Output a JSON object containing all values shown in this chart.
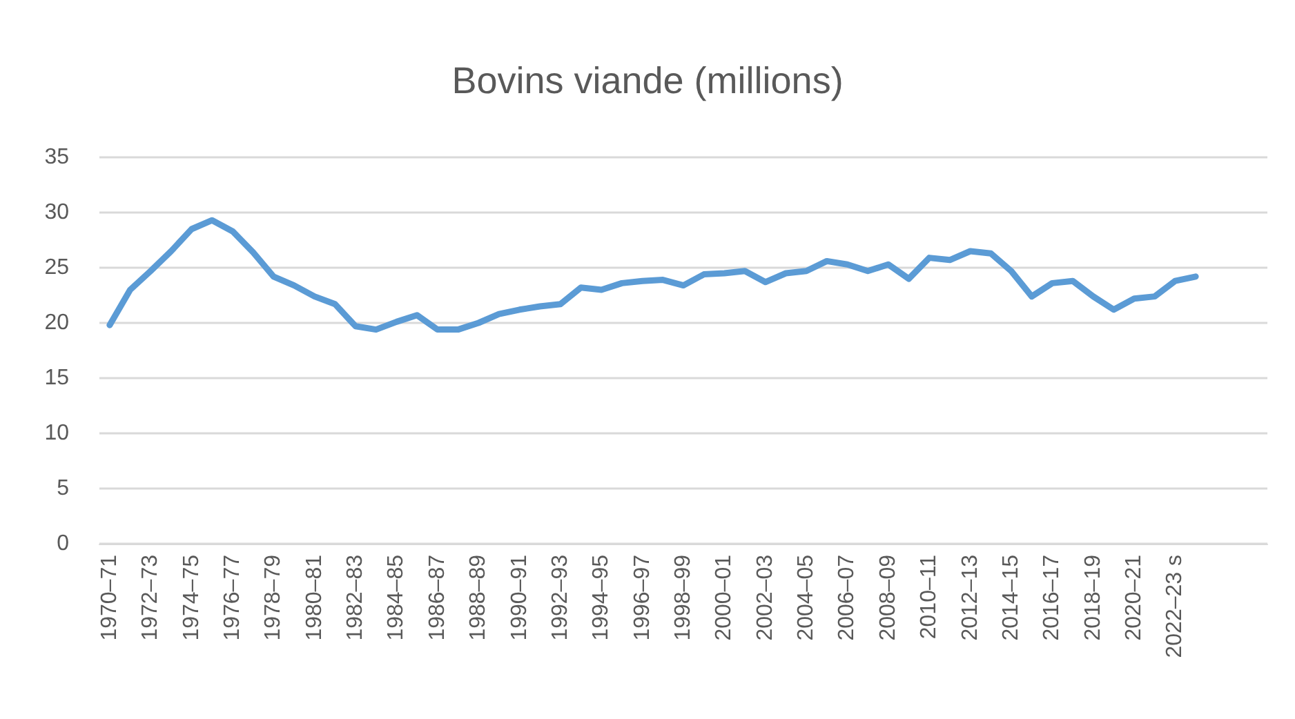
{
  "chart_data": {
    "type": "line",
    "title": "Bovins viande (millions)",
    "categories": [
      "1970–71",
      null,
      "1972–73",
      null,
      "1974–75",
      null,
      "1976–77",
      null,
      "1978–79",
      null,
      "1980–81",
      null,
      "1982–83",
      null,
      "1984–85",
      null,
      "1986–87",
      null,
      "1988–89",
      null,
      "1990–91",
      null,
      "1992–93",
      null,
      "1994–95",
      null,
      "1996–97",
      null,
      "1998–99",
      null,
      "2000–01",
      null,
      "2002–03",
      null,
      "2004–05",
      null,
      "2006–07",
      null,
      "2008–09",
      null,
      "2010–11",
      null,
      "2012–13",
      null,
      "2014–15",
      null,
      "2016–17",
      null,
      "2018–19",
      null,
      "2020–21",
      null,
      "2022–23 s",
      null,
      null,
      null,
      null
    ],
    "series": [
      {
        "color": "#5b9bd5",
        "values": [
          19.8,
          23.0,
          24.7,
          26.5,
          28.5,
          29.3,
          28.3,
          26.4,
          24.2,
          23.4,
          22.4,
          21.7,
          19.7,
          19.4,
          20.1,
          20.7,
          19.4,
          19.4,
          20.0,
          20.8,
          21.2,
          21.5,
          21.7,
          23.2,
          23.0,
          23.6,
          23.8,
          23.9,
          23.4,
          24.4,
          24.5,
          24.7,
          23.7,
          24.5,
          24.7,
          25.6,
          25.3,
          24.7,
          25.3,
          24.0,
          25.9,
          25.7,
          26.5,
          26.3,
          24.7,
          22.4,
          23.6,
          23.8,
          22.4,
          21.2,
          22.2,
          22.4,
          23.8,
          24.2,
          null,
          null,
          null
        ]
      }
    ],
    "ylim": [
      0,
      35
    ],
    "yticks": [
      0,
      5,
      10,
      15,
      20,
      25,
      30,
      35
    ],
    "grid": "y",
    "marker": "none",
    "line_style": "solid"
  }
}
